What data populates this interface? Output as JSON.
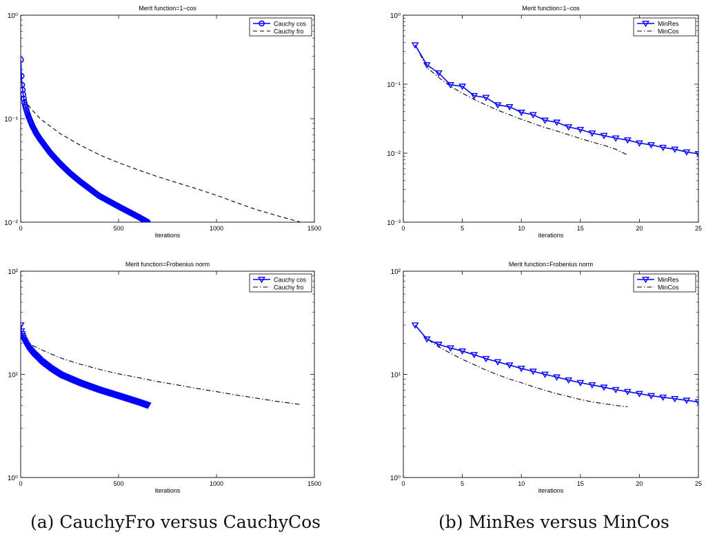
{
  "captions": {
    "a": "(a) CauchyFro versus CauchyCos",
    "b": "(b) MinRes versus MinCos"
  },
  "chart_data": [
    {
      "type": "line",
      "title": "Merit function=1−cos",
      "xlabel": "iterations",
      "ylabel": "",
      "xscale": "linear",
      "yscale": "log",
      "xlim": [
        0,
        1500
      ],
      "ylim": [
        0.01,
        1
      ],
      "xticks": [
        0,
        500,
        1000,
        1500
      ],
      "xtick_labels": [
        "0",
        "500",
        "1000",
        "1500"
      ],
      "yticks": [
        0.01,
        0.1,
        1
      ],
      "ytick_labels": [
        "10⁻²",
        "10⁻¹",
        "10⁰"
      ],
      "legend_position": "top-right",
      "series": [
        {
          "name": "Cauchy cos",
          "color": "#0000ff",
          "style": "solid",
          "marker": "circle",
          "marker_step": 3,
          "x": [
            1,
            3,
            6,
            10,
            15,
            20,
            30,
            40,
            60,
            80,
            100,
            150,
            200,
            250,
            300,
            400,
            500,
            600,
            650
          ],
          "y": [
            0.37,
            0.28,
            0.22,
            0.19,
            0.16,
            0.14,
            0.12,
            0.105,
            0.085,
            0.072,
            0.063,
            0.047,
            0.037,
            0.03,
            0.025,
            0.018,
            0.0142,
            0.0113,
            0.01
          ]
        },
        {
          "name": "Cauchy fro",
          "color": "#000000",
          "style": "dashed",
          "marker": "none",
          "x": [
            20,
            50,
            100,
            200,
            300,
            400,
            500,
            600,
            700,
            800,
            900,
            1000,
            1100,
            1200,
            1300,
            1430
          ],
          "y": [
            0.155,
            0.126,
            0.1,
            0.072,
            0.056,
            0.045,
            0.0375,
            0.032,
            0.0275,
            0.024,
            0.021,
            0.0182,
            0.0155,
            0.0133,
            0.0117,
            0.01
          ]
        }
      ]
    },
    {
      "type": "line",
      "title": "Merit function=1−cos",
      "xlabel": "iterations",
      "ylabel": "",
      "xscale": "linear",
      "yscale": "log",
      "xlim": [
        0,
        25
      ],
      "ylim": [
        0.001,
        1
      ],
      "xticks": [
        0,
        5,
        10,
        15,
        20,
        25
      ],
      "xtick_labels": [
        "0",
        "5",
        "10",
        "15",
        "20",
        "25"
      ],
      "yticks": [
        0.001,
        0.01,
        0.1,
        1
      ],
      "ytick_labels": [
        "10⁻³",
        "10⁻²",
        "10⁻¹",
        "10⁰"
      ],
      "legend_position": "top-right",
      "series": [
        {
          "name": "MinRes",
          "color": "#0000ff",
          "style": "solid",
          "marker": "triangle-down",
          "marker_step": 1,
          "x": [
            1,
            2,
            3,
            4,
            5,
            6,
            7,
            8,
            9,
            10,
            11,
            12,
            13,
            14,
            15,
            16,
            17,
            18,
            19,
            20,
            21,
            22,
            23,
            24,
            25
          ],
          "y": [
            0.37,
            0.19,
            0.145,
            0.098,
            0.093,
            0.068,
            0.064,
            0.05,
            0.047,
            0.039,
            0.036,
            0.03,
            0.028,
            0.024,
            0.022,
            0.0195,
            0.018,
            0.0165,
            0.0155,
            0.014,
            0.0132,
            0.0121,
            0.0114,
            0.0104,
            0.0098
          ]
        },
        {
          "name": "MinCos",
          "color": "#000000",
          "style": "dashdot",
          "marker": "none",
          "x": [
            1,
            2,
            3,
            4,
            5,
            6,
            7,
            8,
            9,
            10,
            11,
            12,
            13,
            14,
            15,
            16,
            17,
            18,
            19
          ],
          "y": [
            0.37,
            0.175,
            0.125,
            0.093,
            0.074,
            0.06,
            0.05,
            0.042,
            0.036,
            0.031,
            0.027,
            0.0235,
            0.021,
            0.0185,
            0.0163,
            0.0145,
            0.013,
            0.0114,
            0.0094
          ]
        }
      ]
    },
    {
      "type": "line",
      "title": "Merit function=Frobenius norm",
      "xlabel": "iterations",
      "ylabel": "",
      "xscale": "linear",
      "yscale": "log",
      "xlim": [
        0,
        1500
      ],
      "ylim": [
        1,
        100
      ],
      "xticks": [
        0,
        500,
        1000,
        1500
      ],
      "xtick_labels": [
        "0",
        "500",
        "1000",
        "1500"
      ],
      "yticks": [
        1,
        10,
        100
      ],
      "ytick_labels": [
        "10⁰",
        "10¹",
        "10²"
      ],
      "legend_position": "top-right",
      "series": [
        {
          "name": "Cauchy cos",
          "color": "#0000ff",
          "style": "solid",
          "marker": "triangle-down",
          "marker_step": 3,
          "x": [
            1,
            3,
            6,
            10,
            15,
            20,
            30,
            40,
            60,
            80,
            100,
            150,
            200,
            250,
            300,
            400,
            500,
            600,
            650
          ],
          "y": [
            30,
            27,
            25,
            23.5,
            22,
            21,
            19.3,
            18,
            16.2,
            14.9,
            13.6,
            11.5,
            10,
            9.1,
            8.3,
            7.1,
            6.2,
            5.4,
            5
          ]
        },
        {
          "name": "Cauchy fro",
          "color": "#000000",
          "style": "dashdot",
          "marker": "none",
          "x": [
            20,
            50,
            100,
            200,
            300,
            400,
            500,
            600,
            700,
            800,
            900,
            1000,
            1100,
            1200,
            1300,
            1430
          ],
          "y": [
            22,
            19.5,
            17.5,
            14.5,
            12.6,
            11.2,
            10.1,
            9.3,
            8.5,
            7.9,
            7.3,
            6.8,
            6.3,
            5.9,
            5.5,
            5.1
          ]
        }
      ]
    },
    {
      "type": "line",
      "title": "Merit function=Frobenius norm",
      "xlabel": "iterations",
      "ylabel": "",
      "xscale": "linear",
      "yscale": "log",
      "xlim": [
        0,
        25
      ],
      "ylim": [
        1,
        100
      ],
      "xticks": [
        0,
        5,
        10,
        15,
        20,
        25
      ],
      "xtick_labels": [
        "0",
        "5",
        "10",
        "15",
        "20",
        "25"
      ],
      "yticks": [
        1,
        10,
        100
      ],
      "ytick_labels": [
        "10⁰",
        "10¹",
        "10²"
      ],
      "legend_position": "top-right",
      "series": [
        {
          "name": "MinRes",
          "color": "#0000ff",
          "style": "solid",
          "marker": "triangle-down",
          "marker_step": 1,
          "x": [
            1,
            2,
            3,
            4,
            5,
            6,
            7,
            8,
            9,
            10,
            11,
            12,
            13,
            14,
            15,
            16,
            17,
            18,
            19,
            20,
            21,
            22,
            23,
            24,
            25
          ],
          "y": [
            30,
            22,
            19.5,
            18,
            16.8,
            15.5,
            14.2,
            13.2,
            12.3,
            11.4,
            10.7,
            10,
            9.4,
            8.8,
            8.3,
            7.9,
            7.5,
            7.1,
            6.8,
            6.5,
            6.2,
            6,
            5.8,
            5.6,
            5.4
          ]
        },
        {
          "name": "MinCos",
          "color": "#000000",
          "style": "dashdot",
          "marker": "none",
          "x": [
            1,
            2,
            3,
            4,
            5,
            6,
            7,
            8,
            9,
            10,
            11,
            12,
            13,
            14,
            15,
            16,
            17,
            18,
            19
          ],
          "y": [
            30,
            22,
            18.5,
            16,
            14,
            12.4,
            11,
            9.9,
            9,
            8.3,
            7.6,
            7,
            6.5,
            6.1,
            5.7,
            5.4,
            5.2,
            5,
            4.85
          ]
        }
      ]
    }
  ]
}
